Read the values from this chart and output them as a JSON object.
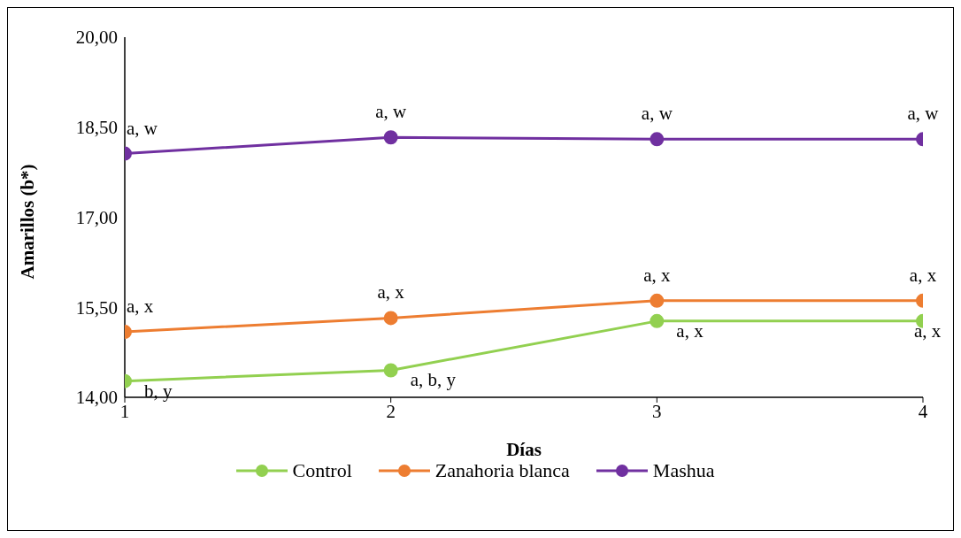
{
  "chart_data": {
    "type": "line",
    "xlabel": "Días",
    "ylabel": "Amarillos (b*)",
    "x": [
      1,
      2,
      3,
      4
    ],
    "xlim": [
      1,
      4
    ],
    "xticks": [
      1,
      2,
      3,
      4
    ],
    "ylim": [
      14,
      20
    ],
    "yticks": [
      {
        "value": 14,
        "label": "14,00"
      },
      {
        "value": 15.5,
        "label": "15,50"
      },
      {
        "value": 17,
        "label": "17,00"
      },
      {
        "value": 18.5,
        "label": "18,50"
      },
      {
        "value": 20,
        "label": "20,00"
      }
    ],
    "series": [
      {
        "name": "Control",
        "color": "#92d050",
        "values": [
          14.27,
          14.45,
          15.27,
          15.27
        ]
      },
      {
        "name": "Zanahoria blanca",
        "color": "#ed7d31",
        "values": [
          15.09,
          15.32,
          15.61,
          15.61
        ]
      },
      {
        "name": "Mashua",
        "color": "#7030a0",
        "values": [
          18.06,
          18.33,
          18.3,
          18.3
        ]
      }
    ],
    "marker": "circle",
    "line_style": "solid",
    "grid": false,
    "legend": "bottom",
    "annotations": [
      {
        "text": "b, y",
        "x": 1,
        "y": 14.27
      },
      {
        "text": "a, b, y",
        "x": 2,
        "y": 14.45
      },
      {
        "text": "a, x",
        "x": 3,
        "y": 15.27
      },
      {
        "text": "a, x",
        "x": 4,
        "y": 15.27
      },
      {
        "text": "a, x",
        "x": 1,
        "y": 15.09
      },
      {
        "text": "a, x",
        "x": 2,
        "y": 15.32
      },
      {
        "text": "a, x",
        "x": 3,
        "y": 15.61
      },
      {
        "text": "a, x",
        "x": 4,
        "y": 15.61
      },
      {
        "text": "a, w",
        "x": 1,
        "y": 18.06
      },
      {
        "text": "a, w",
        "x": 2,
        "y": 18.33
      },
      {
        "text": "a, w",
        "x": 3,
        "y": 18.3
      },
      {
        "text": "a, w",
        "x": 4,
        "y": 18.3
      }
    ]
  }
}
